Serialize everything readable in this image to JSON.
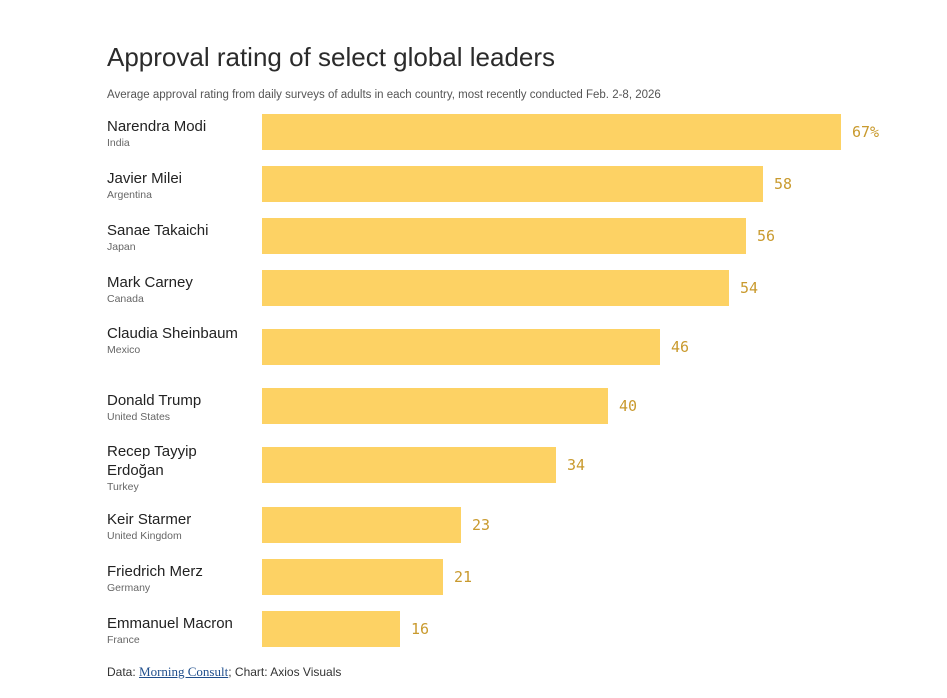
{
  "title": "Approval rating of select global leaders",
  "subtitle": "Average approval rating from daily surveys of adults in each country, most recently conducted Feb. 2-8, 2026",
  "footer": {
    "prefix": "Data: ",
    "source": "Morning Consult",
    "suffix": "; Chart: Axios Visuals"
  },
  "colors": {
    "bar": "#fdd264",
    "value_text": "#c99a2e"
  },
  "chart_data": {
    "type": "bar",
    "orientation": "horizontal",
    "categories": [
      "Narendra Modi",
      "Javier Milei",
      "Sanae Takaichi",
      "Mark Carney",
      "Claudia Sheinbaum",
      "Donald Trump",
      "Recep Tayyip Erdoğan",
      "Keir Starmer",
      "Friedrich Merz",
      "Emmanuel Macron"
    ],
    "countries": [
      "India",
      "Argentina",
      "Japan",
      "Canada",
      "Mexico",
      "United States",
      "Turkey",
      "United Kingdom",
      "Germany",
      "France"
    ],
    "values": [
      67,
      58,
      56,
      54,
      46,
      40,
      34,
      23,
      21,
      16
    ],
    "value_labels": [
      "67%",
      "58",
      "56",
      "54",
      "46",
      "40",
      "34",
      "23",
      "21",
      "16"
    ],
    "xlim": [
      0,
      67
    ],
    "grid": false,
    "legend": "none"
  }
}
